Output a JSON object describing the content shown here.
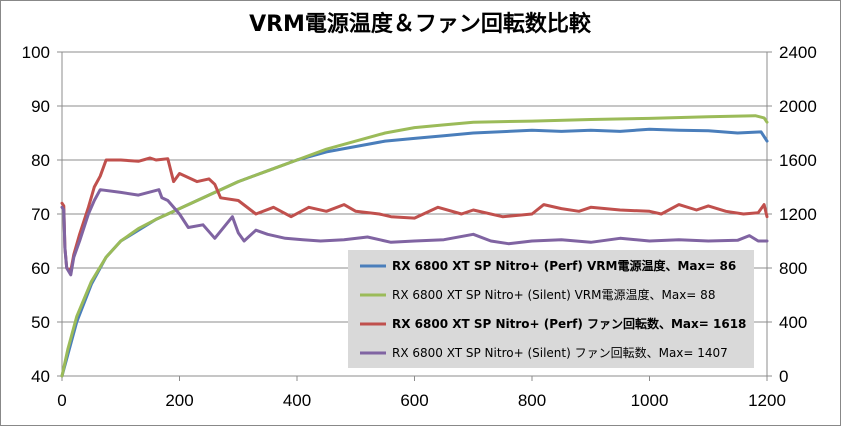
{
  "chart_data": {
    "type": "line",
    "title": "VRM電源温度＆ファン回転数比較",
    "xlabel": "",
    "ylabel": "",
    "xlim": [
      0,
      1200
    ],
    "ylim": [
      40,
      100
    ],
    "y2lim": [
      0,
      2400
    ],
    "x_ticks": [
      "0",
      "200",
      "400",
      "600",
      "800",
      "1000",
      "1200"
    ],
    "y_ticks": [
      "40",
      "50",
      "60",
      "70",
      "80",
      "90",
      "100"
    ],
    "y2_ticks": [
      "0",
      "400",
      "800",
      "1200",
      "1600",
      "2000",
      "2400"
    ],
    "grid": "horizontal",
    "legend_position": "bottom-right",
    "legend_bg": "#d9d9d9",
    "series": [
      {
        "name": "RX 6800 XT SP Nitro+ (Perf) VRM電源温度、Max= 86",
        "axis": "left",
        "color": "#4a7ebb",
        "bold": true,
        "points": [
          [
            0,
            40
          ],
          [
            10,
            44
          ],
          [
            25,
            50
          ],
          [
            50,
            57
          ],
          [
            75,
            62
          ],
          [
            100,
            65
          ],
          [
            130,
            67
          ],
          [
            160,
            69
          ],
          [
            200,
            71
          ],
          [
            250,
            73.5
          ],
          [
            300,
            76
          ],
          [
            350,
            78
          ],
          [
            400,
            80
          ],
          [
            450,
            81.5
          ],
          [
            500,
            82.5
          ],
          [
            550,
            83.5
          ],
          [
            600,
            84
          ],
          [
            650,
            84.5
          ],
          [
            700,
            85
          ],
          [
            800,
            85.5
          ],
          [
            850,
            85.3
          ],
          [
            900,
            85.5
          ],
          [
            950,
            85.3
          ],
          [
            1000,
            85.7
          ],
          [
            1050,
            85.5
          ],
          [
            1100,
            85.4
          ],
          [
            1150,
            85
          ],
          [
            1190,
            85.2
          ],
          [
            1200,
            83.5
          ]
        ]
      },
      {
        "name": "RX 6800 XT SP Nitro+ (Silent) VRM電源温度、Max= 88",
        "axis": "left",
        "color": "#9bbb59",
        "bold": false,
        "points": [
          [
            0,
            40
          ],
          [
            10,
            45
          ],
          [
            25,
            51
          ],
          [
            50,
            57.5
          ],
          [
            75,
            62
          ],
          [
            100,
            65
          ],
          [
            130,
            67.3
          ],
          [
            160,
            69
          ],
          [
            200,
            71
          ],
          [
            250,
            73.5
          ],
          [
            300,
            76
          ],
          [
            350,
            78
          ],
          [
            400,
            80
          ],
          [
            450,
            82
          ],
          [
            500,
            83.5
          ],
          [
            550,
            85
          ],
          [
            600,
            86
          ],
          [
            650,
            86.5
          ],
          [
            700,
            87
          ],
          [
            800,
            87.2
          ],
          [
            900,
            87.5
          ],
          [
            1000,
            87.7
          ],
          [
            1100,
            88
          ],
          [
            1180,
            88.2
          ],
          [
            1195,
            87.8
          ],
          [
            1200,
            87
          ]
        ]
      },
      {
        "name": "RX 6800 XT SP Nitro+ (Perf) ファン回転数、Max= 1618",
        "axis": "right",
        "color": "#c0504d",
        "bold": true,
        "points": [
          [
            0,
            1280
          ],
          [
            3,
            1260
          ],
          [
            5,
            950
          ],
          [
            8,
            800
          ],
          [
            15,
            780
          ],
          [
            20,
            900
          ],
          [
            30,
            1050
          ],
          [
            45,
            1250
          ],
          [
            55,
            1400
          ],
          [
            65,
            1480
          ],
          [
            75,
            1600
          ],
          [
            100,
            1600
          ],
          [
            130,
            1590
          ],
          [
            150,
            1615
          ],
          [
            160,
            1600
          ],
          [
            180,
            1610
          ],
          [
            190,
            1440
          ],
          [
            200,
            1500
          ],
          [
            230,
            1440
          ],
          [
            250,
            1460
          ],
          [
            260,
            1420
          ],
          [
            270,
            1320
          ],
          [
            300,
            1300
          ],
          [
            330,
            1200
          ],
          [
            360,
            1250
          ],
          [
            390,
            1180
          ],
          [
            420,
            1250
          ],
          [
            450,
            1220
          ],
          [
            480,
            1270
          ],
          [
            500,
            1220
          ],
          [
            540,
            1200
          ],
          [
            560,
            1180
          ],
          [
            600,
            1170
          ],
          [
            640,
            1250
          ],
          [
            680,
            1200
          ],
          [
            700,
            1230
          ],
          [
            750,
            1180
          ],
          [
            800,
            1200
          ],
          [
            820,
            1270
          ],
          [
            850,
            1240
          ],
          [
            880,
            1220
          ],
          [
            900,
            1250
          ],
          [
            950,
            1230
          ],
          [
            1000,
            1220
          ],
          [
            1020,
            1200
          ],
          [
            1050,
            1270
          ],
          [
            1080,
            1230
          ],
          [
            1100,
            1260
          ],
          [
            1130,
            1220
          ],
          [
            1160,
            1200
          ],
          [
            1185,
            1210
          ],
          [
            1195,
            1270
          ],
          [
            1200,
            1180
          ]
        ]
      },
      {
        "name": "RX 6800 XT SP Nitro+ (Silent) ファン回転数、Max= 1407",
        "axis": "right",
        "color": "#8064a2",
        "bold": false,
        "points": [
          [
            0,
            1250
          ],
          [
            3,
            1230
          ],
          [
            5,
            950
          ],
          [
            8,
            800
          ],
          [
            15,
            750
          ],
          [
            20,
            880
          ],
          [
            30,
            1000
          ],
          [
            45,
            1200
          ],
          [
            55,
            1300
          ],
          [
            65,
            1380
          ],
          [
            100,
            1360
          ],
          [
            130,
            1340
          ],
          [
            165,
            1380
          ],
          [
            170,
            1320
          ],
          [
            180,
            1300
          ],
          [
            200,
            1200
          ],
          [
            215,
            1100
          ],
          [
            240,
            1120
          ],
          [
            260,
            1020
          ],
          [
            290,
            1180
          ],
          [
            300,
            1060
          ],
          [
            310,
            1000
          ],
          [
            330,
            1080
          ],
          [
            350,
            1050
          ],
          [
            380,
            1020
          ],
          [
            410,
            1010
          ],
          [
            440,
            1000
          ],
          [
            480,
            1010
          ],
          [
            520,
            1030
          ],
          [
            560,
            990
          ],
          [
            600,
            1000
          ],
          [
            650,
            1010
          ],
          [
            700,
            1050
          ],
          [
            730,
            1000
          ],
          [
            760,
            980
          ],
          [
            800,
            1000
          ],
          [
            850,
            1010
          ],
          [
            900,
            990
          ],
          [
            950,
            1020
          ],
          [
            1000,
            1000
          ],
          [
            1050,
            1010
          ],
          [
            1100,
            1000
          ],
          [
            1150,
            1005
          ],
          [
            1170,
            1040
          ],
          [
            1185,
            1000
          ],
          [
            1200,
            1000
          ]
        ]
      }
    ]
  }
}
